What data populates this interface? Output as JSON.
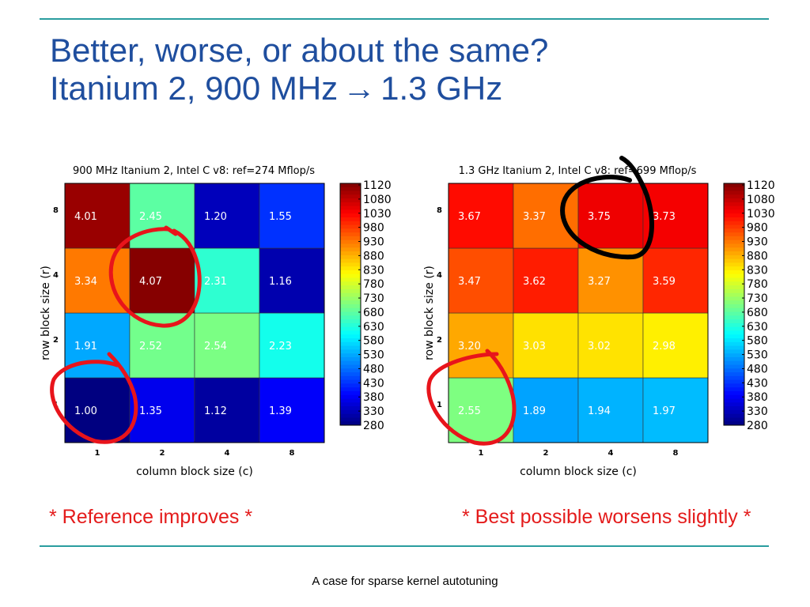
{
  "slide": {
    "title_line1": "Better, worse, or about the same?",
    "title_line2_a": "Itanium 2, 900 MHz",
    "title_arrow": "→",
    "title_line2_b": "1.3 GHz",
    "caption_left": "* Reference improves *",
    "caption_right": "* Best possible worsens slightly *",
    "footer": "A case for sparse kernel autotuning"
  },
  "colorbar_ticks": [
    "1120",
    "1080",
    "1030",
    "980",
    "930",
    "880",
    "830",
    "780",
    "730",
    "680",
    "630",
    "580",
    "530",
    "480",
    "430",
    "380",
    "330",
    "280"
  ],
  "chart_data": [
    {
      "type": "heatmap",
      "title": "900 MHz Itanium 2, Intel C v8: ref=274 Mflop/s",
      "xlabel": "column block size (c)",
      "ylabel": "row block size (r)",
      "x": [
        "1",
        "2",
        "4",
        "8"
      ],
      "y": [
        "1",
        "2",
        "4",
        "8"
      ],
      "colorbar": {
        "min": 280,
        "max": 1120
      },
      "cells": [
        [
          "1.00",
          "1.35",
          "1.12",
          "1.39"
        ],
        [
          "1.91",
          "2.52",
          "2.54",
          "2.23"
        ],
        [
          "3.34",
          "4.07",
          "2.31",
          "1.16"
        ],
        [
          "4.01",
          "2.45",
          "1.20",
          "1.55"
        ]
      ],
      "fill_mflops": [
        [
          274,
          370,
          307,
          381
        ],
        [
          523,
          690,
          696,
          611
        ],
        [
          915,
          1115,
          633,
          318
        ],
        [
          1099,
          671,
          329,
          425
        ]
      ]
    },
    {
      "type": "heatmap",
      "title": "1.3 GHz Itanium 2, Intel C v8: ref=699 Mflop/s",
      "xlabel": "column block size (c)",
      "ylabel": "row block size (r)",
      "x": [
        "1",
        "2",
        "4",
        "8"
      ],
      "y": [
        "1",
        "2",
        "4",
        "8"
      ],
      "colorbar": {
        "min": 280,
        "max": 1120
      },
      "cells": [
        [
          "2.55",
          "1.89",
          "1.94",
          "1.97"
        ],
        [
          "3.20",
          "3.03",
          "3.02",
          "2.98"
        ],
        [
          "3.47",
          "3.62",
          "3.27",
          "3.59"
        ],
        [
          "3.67",
          "3.37",
          "3.75",
          "3.73"
        ]
      ],
      "fill_mflops": [
        [
          699,
          519,
          532,
          540
        ],
        [
          877,
          830,
          828,
          817
        ],
        [
          951,
          992,
          896,
          984
        ],
        [
          1006,
          924,
          1028,
          1023
        ]
      ]
    }
  ]
}
